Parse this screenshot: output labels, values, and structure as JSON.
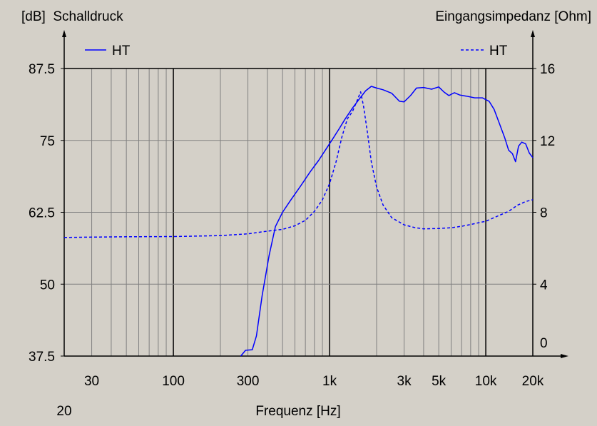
{
  "chart_data": {
    "type": "line",
    "title_left": "[dB]  Schalldruck",
    "title_right": "Eingangsimpedanz [Ohm]",
    "xlabel": "Frequenz [Hz]",
    "x_scale": "log",
    "xlim": [
      20,
      20000
    ],
    "ylim_left": [
      37.5,
      87.5
    ],
    "ylim_right": [
      0,
      16
    ],
    "y_ticks_left": [
      "87.5",
      "75",
      "62.5",
      "50",
      "37.5"
    ],
    "y_ticks_right": [
      "16",
      "12",
      "8",
      "4",
      "0"
    ],
    "x_tick_labels": [
      {
        "x": 20,
        "label": "20",
        "row": 2
      },
      {
        "x": 30,
        "label": "30",
        "row": 1
      },
      {
        "x": 100,
        "label": "100",
        "row": 1
      },
      {
        "x": 300,
        "label": "300",
        "row": 1
      },
      {
        "x": 1000,
        "label": "1k",
        "row": 1
      },
      {
        "x": 3000,
        "label": "3k",
        "row": 1
      },
      {
        "x": 5000,
        "label": "5k",
        "row": 1
      },
      {
        "x": 10000,
        "label": "10k",
        "row": 1
      },
      {
        "x": 20000,
        "label": "20k",
        "row": 1
      }
    ],
    "grid": true,
    "series": [
      {
        "name": "HT",
        "axis": "left",
        "style": "solid",
        "color": "#0000ff",
        "points": [
          [
            270,
            37.5
          ],
          [
            290,
            38.5
          ],
          [
            320,
            38.6
          ],
          [
            340,
            41
          ],
          [
            370,
            48
          ],
          [
            410,
            55
          ],
          [
            450,
            60
          ],
          [
            500,
            62.5
          ],
          [
            560,
            64.5
          ],
          [
            650,
            67
          ],
          [
            750,
            69.5
          ],
          [
            850,
            71.5
          ],
          [
            950,
            73.5
          ],
          [
            1050,
            75.3
          ],
          [
            1150,
            77
          ],
          [
            1250,
            78.6
          ],
          [
            1400,
            80.6
          ],
          [
            1550,
            82.2
          ],
          [
            1700,
            83.6
          ],
          [
            1850,
            84.4
          ],
          [
            2000,
            84.1
          ],
          [
            2200,
            83.8
          ],
          [
            2500,
            83.2
          ],
          [
            2800,
            81.8
          ],
          [
            3000,
            81.7
          ],
          [
            3300,
            82.8
          ],
          [
            3600,
            84.1
          ],
          [
            4000,
            84.2
          ],
          [
            4500,
            83.9
          ],
          [
            5000,
            84.3
          ],
          [
            5400,
            83.4
          ],
          [
            5800,
            82.8
          ],
          [
            6300,
            83.3
          ],
          [
            6800,
            82.9
          ],
          [
            7500,
            82.7
          ],
          [
            8500,
            82.4
          ],
          [
            9500,
            82.4
          ],
          [
            10500,
            81.8
          ],
          [
            11300,
            80.4
          ],
          [
            12200,
            78
          ],
          [
            13200,
            75.5
          ],
          [
            14000,
            73.3
          ],
          [
            14800,
            72.7
          ],
          [
            15500,
            71.3
          ],
          [
            16200,
            74
          ],
          [
            17000,
            74.7
          ],
          [
            18000,
            74.4
          ],
          [
            19000,
            72.8
          ],
          [
            20000,
            72
          ]
        ]
      },
      {
        "name": "HT",
        "axis": "right",
        "style": "dashed",
        "color": "#0000ff",
        "points": [
          [
            20,
            6.6
          ],
          [
            30,
            6.62
          ],
          [
            50,
            6.64
          ],
          [
            100,
            6.65
          ],
          [
            200,
            6.7
          ],
          [
            300,
            6.8
          ],
          [
            400,
            6.95
          ],
          [
            500,
            7.05
          ],
          [
            600,
            7.25
          ],
          [
            700,
            7.55
          ],
          [
            800,
            8.05
          ],
          [
            900,
            8.7
          ],
          [
            1000,
            9.6
          ],
          [
            1100,
            10.8
          ],
          [
            1200,
            12.2
          ],
          [
            1300,
            13.2
          ],
          [
            1400,
            13.6
          ],
          [
            1500,
            14.2
          ],
          [
            1580,
            14.7
          ],
          [
            1650,
            13.9
          ],
          [
            1750,
            12.4
          ],
          [
            1850,
            10.8
          ],
          [
            2000,
            9.4
          ],
          [
            2200,
            8.4
          ],
          [
            2500,
            7.7
          ],
          [
            3000,
            7.3
          ],
          [
            3500,
            7.15
          ],
          [
            4000,
            7.08
          ],
          [
            5000,
            7.1
          ],
          [
            6000,
            7.14
          ],
          [
            7000,
            7.22
          ],
          [
            8000,
            7.32
          ],
          [
            9000,
            7.42
          ],
          [
            10000,
            7.5
          ],
          [
            12000,
            7.8
          ],
          [
            14000,
            8.05
          ],
          [
            16000,
            8.4
          ],
          [
            18000,
            8.6
          ],
          [
            20000,
            8.7
          ]
        ]
      }
    ]
  }
}
